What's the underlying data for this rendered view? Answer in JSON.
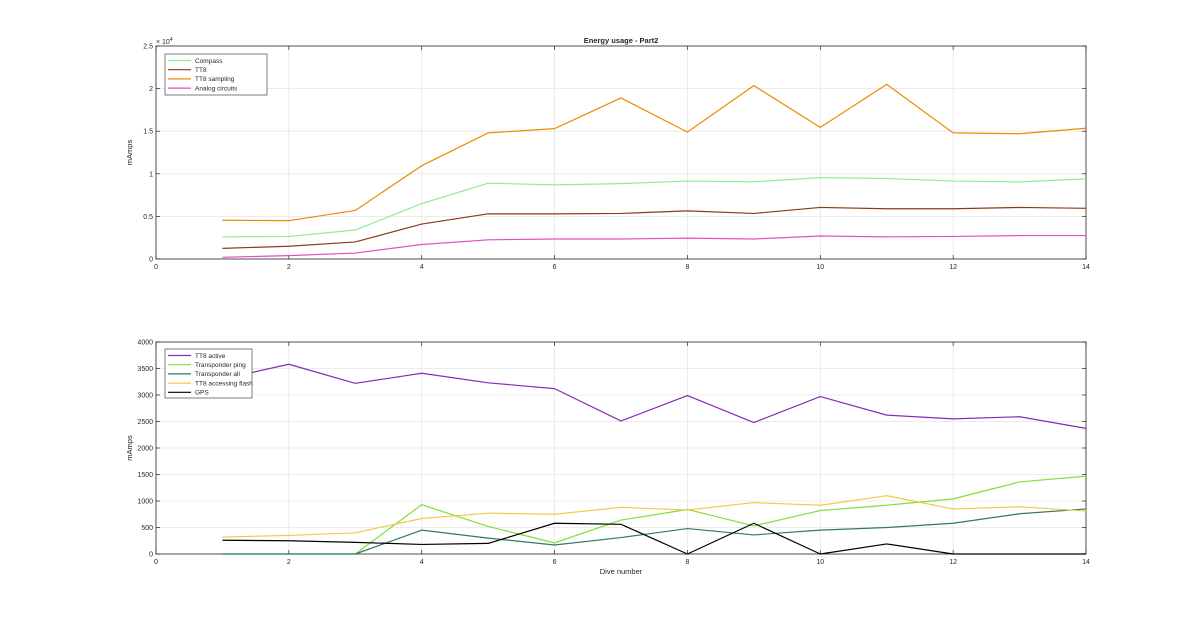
{
  "figure": {
    "background": "#ffffff"
  },
  "chart_data": [
    {
      "type": "line",
      "title": "Energy usage - Part2",
      "xlabel": "",
      "ylabel": "mAmps",
      "y_exponent_label": "× 10",
      "y_exponent_power": "4",
      "xlim": [
        0,
        14
      ],
      "ylim": [
        0,
        25000
      ],
      "grid": true,
      "legend_position": "top-left",
      "xticks": [
        0,
        2,
        4,
        6,
        8,
        10,
        12,
        14
      ],
      "xtick_labels": [
        "0",
        "2",
        "4",
        "6",
        "8",
        "10",
        "12",
        "14"
      ],
      "yticks": [
        0,
        5000,
        10000,
        15000,
        20000,
        25000
      ],
      "ytick_labels": [
        "0",
        "0.5",
        "1",
        "1.5",
        "2",
        "2.5"
      ],
      "x": [
        1,
        2,
        3,
        4,
        5,
        6,
        7,
        8,
        9,
        10,
        11,
        12,
        13,
        14
      ],
      "series": [
        {
          "name": "Compass",
          "color": "#90ee90",
          "values": [
            2600,
            2650,
            3400,
            6500,
            8900,
            8700,
            8850,
            9150,
            9050,
            9550,
            9450,
            9150,
            9050,
            9400
          ]
        },
        {
          "name": "TT8",
          "color": "#8b3a1a",
          "values": [
            1250,
            1500,
            2000,
            4100,
            5300,
            5300,
            5350,
            5650,
            5350,
            6050,
            5900,
            5900,
            6050,
            5950
          ]
        },
        {
          "name": "TT8 sampling",
          "color": "#ee8a00",
          "values": [
            4550,
            4500,
            5700,
            10950,
            14800,
            15300,
            18900,
            14900,
            20350,
            15450,
            20500,
            14800,
            14700,
            15350
          ]
        },
        {
          "name": "Analog circuits",
          "color": "#e24fc4",
          "values": [
            200,
            400,
            700,
            1700,
            2250,
            2350,
            2350,
            2450,
            2350,
            2700,
            2600,
            2650,
            2750,
            2750
          ]
        }
      ]
    },
    {
      "type": "line",
      "title": "",
      "xlabel": "Dive number",
      "ylabel": "mAmps",
      "xlim": [
        0,
        14
      ],
      "ylim": [
        0,
        4000
      ],
      "grid": true,
      "legend_position": "top-left",
      "xticks": [
        0,
        2,
        4,
        6,
        8,
        10,
        12,
        14
      ],
      "xtick_labels": [
        "0",
        "2",
        "4",
        "6",
        "8",
        "10",
        "12",
        "14"
      ],
      "yticks": [
        0,
        500,
        1000,
        1500,
        2000,
        2500,
        3000,
        3500,
        4000
      ],
      "ytick_labels": [
        "0",
        "500",
        "1000",
        "1500",
        "2000",
        "2500",
        "3000",
        "3500",
        "4000"
      ],
      "x": [
        1,
        2,
        3,
        4,
        5,
        6,
        7,
        8,
        9,
        10,
        11,
        12,
        13,
        14
      ],
      "series": [
        {
          "name": "TT8 active",
          "color": "#8a2bb5",
          "values": [
            3300,
            3580,
            3220,
            3410,
            3230,
            3120,
            2510,
            2990,
            2480,
            2970,
            2620,
            2550,
            2590,
            2370
          ]
        },
        {
          "name": "Transponder ping",
          "color": "#7ee03a",
          "values": [
            0,
            0,
            0,
            930,
            520,
            210,
            640,
            840,
            530,
            820,
            920,
            1040,
            1360,
            1470
          ]
        },
        {
          "name": "Transponder all",
          "color": "#2e7d5b",
          "values": [
            0,
            0,
            0,
            450,
            300,
            170,
            310,
            480,
            360,
            450,
            500,
            580,
            760,
            850
          ]
        },
        {
          "name": "TT8 accessing flash",
          "color": "#f5c84c",
          "values": [
            320,
            350,
            400,
            670,
            770,
            750,
            880,
            830,
            970,
            920,
            1100,
            850,
            890,
            810
          ]
        },
        {
          "name": "GPS",
          "color": "#000000",
          "values": [
            260,
            250,
            220,
            180,
            200,
            580,
            560,
            0,
            580,
            0,
            190,
            0,
            0,
            0
          ]
        }
      ]
    }
  ]
}
